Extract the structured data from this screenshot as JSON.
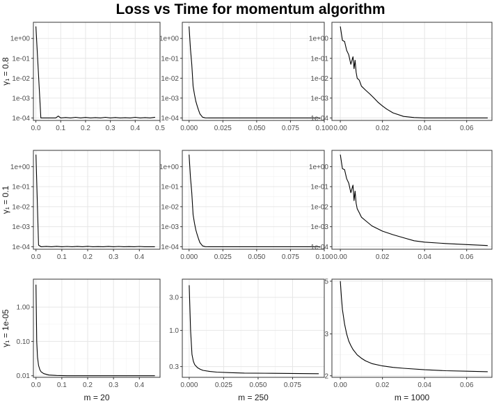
{
  "title": "Loss vs Time for momentum algorithm",
  "chart_data": {
    "type": "line",
    "title": "Loss vs Time for momentum algorithm",
    "columns": [
      "m = 20",
      "m = 250",
      "m = 1000"
    ],
    "rows": [
      "γ₁ = 0.8",
      "γ₁ = 0.1",
      "γ₁ = 1e-05"
    ],
    "grid": true,
    "panels": [
      {
        "row": 0,
        "col": 0,
        "log": true,
        "xlim": [
          -0.01,
          0.5
        ],
        "ylim": [
          7.5e-05,
          6.5
        ],
        "xticks": [
          0,
          0.1,
          0.2,
          0.3,
          0.4,
          0.5
        ],
        "xtick_labels": [
          "0.0",
          "0.1",
          "0.2",
          "0.3",
          "0.4",
          "0.5"
        ],
        "yticks": [
          1,
          0.1,
          0.01,
          0.001,
          0.0001
        ],
        "ytick_labels": [
          "1e+00",
          "1e-01",
          "1e-02",
          "1e-03",
          "1e-04"
        ],
        "x": [
          0,
          0.02,
          0.04,
          0.06,
          0.08,
          0.09,
          0.1,
          0.12,
          0.14,
          0.16,
          0.18,
          0.2,
          0.22,
          0.24,
          0.26,
          0.28,
          0.3,
          0.32,
          0.34,
          0.36,
          0.38,
          0.4,
          0.42,
          0.44,
          0.46,
          0.48
        ],
        "y": [
          4,
          0.0001,
          0.0001,
          0.0001,
          0.0001,
          0.000125,
          0.0001,
          0.000105,
          0.0001,
          0.000108,
          0.0001,
          0.000106,
          0.0001,
          0.000104,
          0.0001,
          0.000108,
          0.0001,
          0.000105,
          0.0001,
          0.000103,
          0.0001,
          0.000108,
          0.0001,
          0.000104,
          0.0001,
          0.000109
        ]
      },
      {
        "row": 0,
        "col": 1,
        "log": true,
        "xlim": [
          -0.005,
          0.1
        ],
        "ylim": [
          7.5e-05,
          6.5
        ],
        "xticks": [
          0,
          0.025,
          0.05,
          0.075,
          0.1
        ],
        "xtick_labels": [
          "0.000",
          "0.025",
          "0.050",
          "0.075",
          "0.100"
        ],
        "yticks": [
          1,
          0.1,
          0.01,
          0.001,
          0.0001
        ],
        "ytick_labels": [
          "1e+00",
          "1e-01",
          "1e-02",
          "1e-03",
          "1e-04"
        ],
        "x": [
          0,
          0.001,
          0.002,
          0.003,
          0.004,
          0.005,
          0.006,
          0.007,
          0.008,
          0.01,
          0.012,
          0.015,
          0.02,
          0.03,
          0.05,
          0.07,
          0.097
        ],
        "y": [
          4,
          0.3,
          0.05,
          0.004,
          0.0015,
          0.0007,
          0.0004,
          0.00025,
          0.00016,
          0.00011,
          0.000101,
          0.0001,
          0.0001,
          0.0001,
          0.0001,
          0.0001,
          0.0001
        ]
      },
      {
        "row": 0,
        "col": 2,
        "log": true,
        "xlim": [
          -0.004,
          0.072
        ],
        "ylim": [
          7.5e-05,
          6.5
        ],
        "xticks": [
          0,
          0.02,
          0.04,
          0.06
        ],
        "xtick_labels": [
          "0.00",
          "0.02",
          "0.04",
          "0.06"
        ],
        "yticks": [
          1,
          0.1,
          0.01,
          0.001,
          0.0001
        ],
        "ytick_labels": [
          "1e+00",
          "1e-01",
          "1e-02",
          "1e-03",
          "1e-04"
        ],
        "x": [
          0,
          0.001,
          0.002,
          0.003,
          0.004,
          0.005,
          0.006,
          0.0065,
          0.007,
          0.0075,
          0.008,
          0.009,
          0.01,
          0.012,
          0.014,
          0.016,
          0.018,
          0.02,
          0.022,
          0.025,
          0.03,
          0.035,
          0.04,
          0.05,
          0.06,
          0.07
        ],
        "y": [
          4,
          0.8,
          0.7,
          0.25,
          0.15,
          0.05,
          0.12,
          0.03,
          0.08,
          0.02,
          0.01,
          0.008,
          0.004,
          0.0025,
          0.0016,
          0.001,
          0.0006,
          0.0004,
          0.00028,
          0.00018,
          0.00012,
          0.000105,
          0.0001,
          0.0001,
          0.0001,
          0.0001
        ]
      },
      {
        "row": 1,
        "col": 0,
        "log": true,
        "xlim": [
          -0.01,
          0.48
        ],
        "ylim": [
          7.5e-05,
          6.5
        ],
        "xticks": [
          0,
          0.1,
          0.2,
          0.3,
          0.4
        ],
        "xtick_labels": [
          "0.0",
          "0.1",
          "0.2",
          "0.3",
          "0.4"
        ],
        "yticks": [
          1,
          0.1,
          0.01,
          0.001,
          0.0001
        ],
        "ytick_labels": [
          "1e+00",
          "1e-01",
          "1e-02",
          "1e-03",
          "1e-04"
        ],
        "x": [
          0,
          0.01,
          0.02,
          0.04,
          0.06,
          0.08,
          0.1,
          0.12,
          0.14,
          0.16,
          0.18,
          0.2,
          0.22,
          0.24,
          0.26,
          0.28,
          0.3,
          0.32,
          0.34,
          0.36,
          0.38,
          0.4,
          0.42,
          0.44,
          0.46
        ],
        "y": [
          4,
          0.00012,
          0.0001,
          0.000104,
          0.0001,
          0.000105,
          0.0001,
          0.000103,
          0.0001,
          0.000104,
          0.0001,
          0.000105,
          0.0001,
          0.000102,
          0.0001,
          0.000104,
          0.0001,
          0.000103,
          0.0001,
          0.000102,
          0.0001,
          0.000103,
          0.0001,
          0.0001,
          0.0001
        ]
      },
      {
        "row": 1,
        "col": 1,
        "log": true,
        "xlim": [
          -0.005,
          0.1
        ],
        "ylim": [
          7.5e-05,
          6.5
        ],
        "xticks": [
          0,
          0.025,
          0.05,
          0.075,
          0.1
        ],
        "xtick_labels": [
          "0.000",
          "0.025",
          "0.050",
          "0.075",
          "0.100"
        ],
        "yticks": [
          1,
          0.1,
          0.01,
          0.001,
          0.0001
        ],
        "ytick_labels": [
          "1e+00",
          "1e-01",
          "1e-02",
          "1e-03",
          "1e-04"
        ],
        "x": [
          0,
          0.001,
          0.002,
          0.003,
          0.004,
          0.005,
          0.006,
          0.007,
          0.008,
          0.01,
          0.012,
          0.015,
          0.02,
          0.03,
          0.05,
          0.07,
          0.097
        ],
        "y": [
          4,
          0.3,
          0.05,
          0.004,
          0.0015,
          0.0007,
          0.0004,
          0.00025,
          0.00016,
          0.00011,
          0.000101,
          0.0001,
          0.0001,
          0.0001,
          0.0001,
          0.0001,
          0.0001
        ]
      },
      {
        "row": 1,
        "col": 2,
        "log": true,
        "xlim": [
          -0.004,
          0.072
        ],
        "ylim": [
          7.5e-05,
          6.5
        ],
        "xticks": [
          0,
          0.02,
          0.04,
          0.06
        ],
        "xtick_labels": [
          "0.00",
          "0.02",
          "0.04",
          "0.06"
        ],
        "yticks": [
          1,
          0.1,
          0.01,
          0.001,
          0.0001
        ],
        "ytick_labels": [
          "1e+00",
          "1e-01",
          "1e-02",
          "1e-03",
          "1e-04"
        ],
        "x": [
          0,
          0.001,
          0.002,
          0.003,
          0.004,
          0.005,
          0.006,
          0.0065,
          0.007,
          0.0075,
          0.008,
          0.009,
          0.01,
          0.012,
          0.015,
          0.02,
          0.025,
          0.03,
          0.035,
          0.04,
          0.05,
          0.06,
          0.07
        ],
        "y": [
          4,
          0.8,
          0.7,
          0.25,
          0.15,
          0.05,
          0.12,
          0.02,
          0.06,
          0.015,
          0.008,
          0.005,
          0.003,
          0.002,
          0.0011,
          0.0006,
          0.0004,
          0.00028,
          0.0002,
          0.00017,
          0.000145,
          0.000128,
          0.000115
        ]
      },
      {
        "row": 2,
        "col": 0,
        "log": true,
        "xlim": [
          -0.01,
          0.48
        ],
        "ylim": [
          0.009,
          6.5
        ],
        "xticks": [
          0,
          0.1,
          0.2,
          0.3,
          0.4
        ],
        "xtick_labels": [
          "0.0",
          "0.1",
          "0.2",
          "0.3",
          "0.4"
        ],
        "yticks": [
          1,
          0.1,
          0.01
        ],
        "ytick_labels": [
          "1.00",
          "0.10",
          "0.01"
        ],
        "x": [
          0,
          0.003,
          0.006,
          0.01,
          0.015,
          0.02,
          0.03,
          0.05,
          0.08,
          0.12,
          0.2,
          0.3,
          0.4,
          0.46
        ],
        "y": [
          4.5,
          0.1,
          0.035,
          0.02,
          0.015,
          0.013,
          0.0115,
          0.0105,
          0.0102,
          0.01,
          0.01,
          0.01,
          0.01,
          0.01
        ]
      },
      {
        "row": 2,
        "col": 1,
        "log": true,
        "xlim": [
          -0.005,
          0.098
        ],
        "ylim": [
          0.21,
          5.5
        ],
        "xticks": [
          0,
          0.025,
          0.05,
          0.075
        ],
        "xtick_labels": [
          "0.000",
          "0.025",
          "0.050",
          "0.075"
        ],
        "yticks": [
          3,
          1,
          0.3
        ],
        "ytick_labels": [
          "3.0",
          "1.0",
          "0.3"
        ],
        "x": [
          0,
          0.001,
          0.002,
          0.003,
          0.004,
          0.006,
          0.008,
          0.01,
          0.015,
          0.02,
          0.03,
          0.04,
          0.06,
          0.08,
          0.094
        ],
        "y": [
          4.5,
          1.0,
          0.45,
          0.36,
          0.32,
          0.29,
          0.275,
          0.265,
          0.255,
          0.25,
          0.245,
          0.242,
          0.24,
          0.238,
          0.237
        ]
      },
      {
        "row": 2,
        "col": 2,
        "log": true,
        "xlim": [
          -0.004,
          0.072
        ],
        "ylim": [
          1.97,
          5.1
        ],
        "xticks": [
          0,
          0.02,
          0.04,
          0.06
        ],
        "xtick_labels": [
          "0.00",
          "0.02",
          "0.04",
          "0.06"
        ],
        "yticks": [
          5,
          3,
          2
        ],
        "ytick_labels": [
          "5",
          "3",
          "2"
        ],
        "x": [
          0,
          0.0005,
          0.001,
          0.002,
          0.003,
          0.004,
          0.005,
          0.006,
          0.008,
          0.01,
          0.012,
          0.015,
          0.02,
          0.025,
          0.03,
          0.04,
          0.05,
          0.06,
          0.07
        ],
        "y": [
          5,
          4.3,
          3.8,
          3.3,
          3.0,
          2.8,
          2.68,
          2.58,
          2.45,
          2.37,
          2.31,
          2.25,
          2.2,
          2.17,
          2.15,
          2.12,
          2.1,
          2.09,
          2.08
        ]
      }
    ]
  }
}
